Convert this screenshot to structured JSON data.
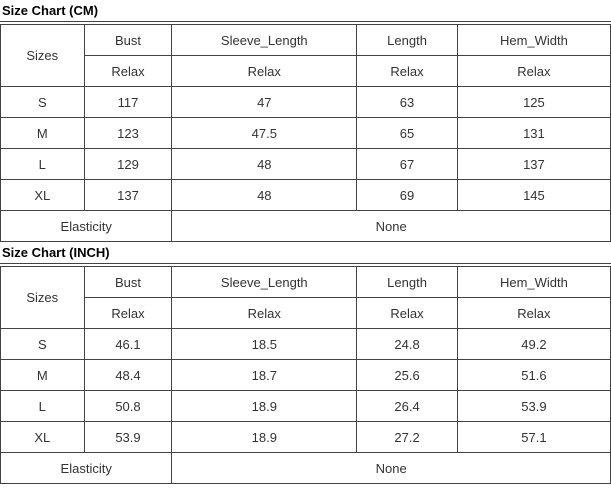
{
  "page": {
    "background": "#ffffff",
    "border_color": "#434343",
    "text_color": "#333333",
    "title_color": "#000000"
  },
  "tables": [
    {
      "id": "cm",
      "title": "Size Chart (CM)",
      "columns": [
        "Sizes",
        "Bust",
        "Sleeve_Length",
        "Length",
        "Hem_Width"
      ],
      "fit_label": "Relax",
      "rows": [
        {
          "size": "S",
          "values": [
            "117",
            "47",
            "63",
            "125"
          ]
        },
        {
          "size": "M",
          "values": [
            "123",
            "47.5",
            "65",
            "131"
          ]
        },
        {
          "size": "L",
          "values": [
            "129",
            "48",
            "67",
            "137"
          ]
        },
        {
          "size": "XL",
          "values": [
            "137",
            "48",
            "69",
            "145"
          ]
        }
      ],
      "elasticity_label": "Elasticity",
      "elasticity_value": "None"
    },
    {
      "id": "inch",
      "title": "Size Chart (INCH)",
      "columns": [
        "Sizes",
        "Bust",
        "Sleeve_Length",
        "Length",
        "Hem_Width"
      ],
      "fit_label": "Relax",
      "rows": [
        {
          "size": "S",
          "values": [
            "46.1",
            "18.5",
            "24.8",
            "49.2"
          ]
        },
        {
          "size": "M",
          "values": [
            "48.4",
            "18.7",
            "25.6",
            "51.6"
          ]
        },
        {
          "size": "L",
          "values": [
            "50.8",
            "18.9",
            "26.4",
            "53.9"
          ]
        },
        {
          "size": "XL",
          "values": [
            "53.9",
            "18.9",
            "27.2",
            "57.1"
          ]
        }
      ],
      "elasticity_label": "Elasticity",
      "elasticity_value": "None"
    }
  ]
}
